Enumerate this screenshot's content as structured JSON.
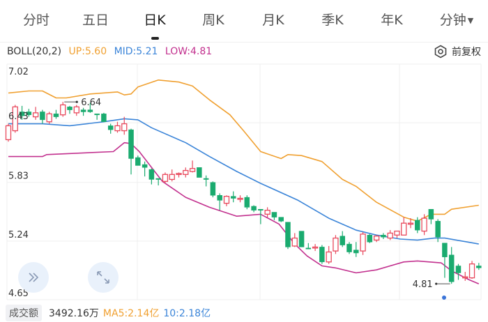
{
  "tabs": [
    {
      "label": "分时",
      "active": false
    },
    {
      "label": "五日",
      "active": false
    },
    {
      "label": "日K",
      "active": true
    },
    {
      "label": "周K",
      "active": false
    },
    {
      "label": "月K",
      "active": false
    },
    {
      "label": "季K",
      "active": false
    },
    {
      "label": "年K",
      "active": false
    },
    {
      "label": "分钟",
      "active": false,
      "dropdown": true
    }
  ],
  "indicator": {
    "name": "BOLL(20,2)",
    "up": "UP:5.60",
    "mid": "MID:5.21",
    "low": "LOW:4.81",
    "adjust_label": "前复权",
    "adjust_icon": "hexagon-settings-icon"
  },
  "colors": {
    "up_candle": "#e8485c",
    "down_candle": "#1aab6f",
    "upper_band": "#f0a030",
    "mid_band": "#3a84d8",
    "lower_band": "#c2308e",
    "badge_bg": "#f0f1f4"
  },
  "chart_data": {
    "type": "candlestick",
    "ylim": [
      4.65,
      7.02
    ],
    "y_ticks": [
      "7.02",
      "6.43",
      "5.83",
      "5.24",
      "4.65"
    ],
    "grid": true,
    "annotations": {
      "max_label": "6.64",
      "max_index": 8,
      "min_label": "4.81",
      "min_index": 65
    },
    "candles_ohlc": [
      [
        6.26,
        6.4,
        6.42,
        6.24
      ],
      [
        6.35,
        6.59,
        6.61,
        6.33
      ],
      [
        6.54,
        6.5,
        6.6,
        6.46
      ],
      [
        6.54,
        6.51,
        6.57,
        6.49
      ],
      [
        6.49,
        6.53,
        6.59,
        6.46
      ],
      [
        6.54,
        6.46,
        6.56,
        6.42
      ],
      [
        6.44,
        6.52,
        6.54,
        6.42
      ],
      [
        6.52,
        6.49,
        6.56,
        6.47
      ],
      [
        6.51,
        6.61,
        6.64,
        6.49
      ],
      [
        6.59,
        6.56,
        6.6,
        6.52
      ],
      [
        6.53,
        6.59,
        6.61,
        6.5
      ],
      [
        6.56,
        6.54,
        6.58,
        6.5
      ],
      [
        6.56,
        6.54,
        6.63,
        6.53
      ],
      [
        6.52,
        6.51,
        6.52,
        6.46
      ],
      [
        6.52,
        6.44,
        6.53,
        6.44
      ],
      [
        6.4,
        6.36,
        6.42,
        6.32
      ],
      [
        6.35,
        6.4,
        6.44,
        6.33
      ],
      [
        6.35,
        6.42,
        6.49,
        6.31
      ],
      [
        6.36,
        6.07,
        6.37,
        5.91
      ],
      [
        6.08,
        6.0,
        6.1,
        6.0
      ],
      [
        6.01,
        5.98,
        6.04,
        5.89
      ],
      [
        5.96,
        5.86,
        5.97,
        5.81
      ],
      [
        5.87,
        5.86,
        5.87,
        5.8
      ],
      [
        5.84,
        5.91,
        5.93,
        5.82
      ],
      [
        5.86,
        5.91,
        5.96,
        5.84
      ],
      [
        5.91,
        5.92,
        5.93,
        5.88
      ],
      [
        5.91,
        5.95,
        5.98,
        5.88
      ],
      [
        5.94,
        5.97,
        6.05,
        5.93
      ],
      [
        5.98,
        5.88,
        5.98,
        5.88
      ],
      [
        5.87,
        5.86,
        5.9,
        5.79
      ],
      [
        5.83,
        5.7,
        5.84,
        5.68
      ],
      [
        5.7,
        5.65,
        5.72,
        5.55
      ],
      [
        5.62,
        5.69,
        5.7,
        5.59
      ],
      [
        5.69,
        5.67,
        5.74,
        5.63
      ],
      [
        5.66,
        5.67,
        5.7,
        5.63
      ],
      [
        5.68,
        5.58,
        5.7,
        5.56
      ],
      [
        5.59,
        5.55,
        5.6,
        5.53
      ],
      [
        5.56,
        5.55,
        5.56,
        5.41
      ],
      [
        5.51,
        5.55,
        5.58,
        5.48
      ],
      [
        5.53,
        5.48,
        5.53,
        5.45
      ],
      [
        5.48,
        5.44,
        5.48,
        5.43
      ],
      [
        5.43,
        5.18,
        5.43,
        5.16
      ],
      [
        5.19,
        5.27,
        5.32,
        5.18
      ],
      [
        5.34,
        5.18,
        5.34,
        5.18
      ],
      [
        5.17,
        5.16,
        5.22,
        5.16
      ],
      [
        5.17,
        5.18,
        5.21,
        5.14
      ],
      [
        5.18,
        5.03,
        5.2,
        5.01
      ],
      [
        5.03,
        5.13,
        5.19,
        5.01
      ],
      [
        5.14,
        5.27,
        5.3,
        5.11
      ],
      [
        5.29,
        5.2,
        5.34,
        5.18
      ],
      [
        5.21,
        5.13,
        5.23,
        5.11
      ],
      [
        5.15,
        5.12,
        5.23,
        5.08
      ],
      [
        5.14,
        5.31,
        5.33,
        5.1
      ],
      [
        5.3,
        5.23,
        5.31,
        5.22
      ],
      [
        5.25,
        5.29,
        5.3,
        5.23
      ],
      [
        5.3,
        5.28,
        5.32,
        5.26
      ],
      [
        5.27,
        5.32,
        5.35,
        5.25
      ],
      [
        5.3,
        5.34,
        5.34,
        5.27
      ],
      [
        5.3,
        5.42,
        5.48,
        5.3
      ],
      [
        5.41,
        5.42,
        5.47,
        5.37
      ],
      [
        5.45,
        5.35,
        5.48,
        5.32
      ],
      [
        5.34,
        5.47,
        5.51,
        5.3
      ],
      [
        5.56,
        5.46,
        5.56,
        5.41
      ],
      [
        5.44,
        5.28,
        5.46,
        5.23
      ],
      [
        5.22,
        5.08,
        5.22,
        4.87
      ],
      [
        5.1,
        4.83,
        5.18,
        4.81
      ],
      [
        4.99,
        4.92,
        5.01,
        4.85
      ],
      [
        4.87,
        4.88,
        4.93,
        4.84
      ],
      [
        4.87,
        5.01,
        5.04,
        4.86
      ],
      [
        4.99,
        4.97,
        5.02,
        4.95
      ]
    ],
    "upper_band": [
      [
        0,
        6.73
      ],
      [
        3,
        6.75
      ],
      [
        5,
        6.75
      ],
      [
        7,
        6.68
      ],
      [
        8.5,
        6.68
      ],
      [
        12,
        6.72
      ],
      [
        16,
        6.74
      ],
      [
        17,
        6.71
      ],
      [
        18,
        6.72
      ],
      [
        19,
        6.79
      ],
      [
        22,
        6.86
      ],
      [
        25,
        6.84
      ],
      [
        27,
        6.8
      ],
      [
        29.5,
        6.66
      ],
      [
        32.5,
        6.51
      ],
      [
        34.5,
        6.35
      ],
      [
        37,
        6.14
      ],
      [
        40,
        6.07
      ],
      [
        41,
        6.11
      ],
      [
        43,
        6.1
      ],
      [
        46,
        6.04
      ],
      [
        49,
        5.86
      ],
      [
        51,
        5.79
      ],
      [
        54,
        5.63
      ],
      [
        58,
        5.48
      ],
      [
        60,
        5.44
      ],
      [
        62,
        5.51
      ],
      [
        64,
        5.51
      ],
      [
        65,
        5.56
      ],
      [
        69,
        5.6
      ]
    ],
    "mid_band": [
      [
        0,
        6.42
      ],
      [
        5,
        6.42
      ],
      [
        9,
        6.4
      ],
      [
        14,
        6.44
      ],
      [
        17,
        6.47
      ],
      [
        19,
        6.46
      ],
      [
        21,
        6.38
      ],
      [
        26,
        6.23
      ],
      [
        29.5,
        6.09
      ],
      [
        33.5,
        5.94
      ],
      [
        37,
        5.82
      ],
      [
        42.5,
        5.65
      ],
      [
        47,
        5.47
      ],
      [
        51,
        5.35
      ],
      [
        54,
        5.3
      ],
      [
        57.5,
        5.26
      ],
      [
        60,
        5.25
      ],
      [
        62.5,
        5.27
      ],
      [
        64,
        5.27
      ],
      [
        69,
        5.21
      ]
    ],
    "lower_band": [
      [
        0,
        6.09
      ],
      [
        5,
        6.09
      ],
      [
        5.6,
        6.11
      ],
      [
        15.4,
        6.14
      ],
      [
        17,
        6.23
      ],
      [
        18,
        6.22
      ],
      [
        19.2,
        6.14
      ],
      [
        21,
        5.98
      ],
      [
        22.6,
        5.84
      ],
      [
        26,
        5.68
      ],
      [
        29.5,
        5.58
      ],
      [
        33.5,
        5.49
      ],
      [
        37,
        5.51
      ],
      [
        39.7,
        5.41
      ],
      [
        42,
        5.21
      ],
      [
        43.8,
        5.09
      ],
      [
        46,
        4.99
      ],
      [
        48,
        4.97
      ],
      [
        51,
        4.92
      ],
      [
        54,
        4.95
      ],
      [
        58,
        5.03
      ],
      [
        60,
        5.04
      ],
      [
        63.5,
        5.02
      ],
      [
        65,
        4.94
      ],
      [
        67.6,
        4.85
      ],
      [
        69,
        4.81
      ]
    ]
  },
  "controls": {
    "expand_icon": "double-chevron-right-icon",
    "fullscreen_icon": "expand-arrows-icon"
  },
  "volume": {
    "label": "成交额",
    "value": "3492.16万",
    "ma5": "MA5:2.14亿",
    "ma10": "10:2.18亿"
  }
}
